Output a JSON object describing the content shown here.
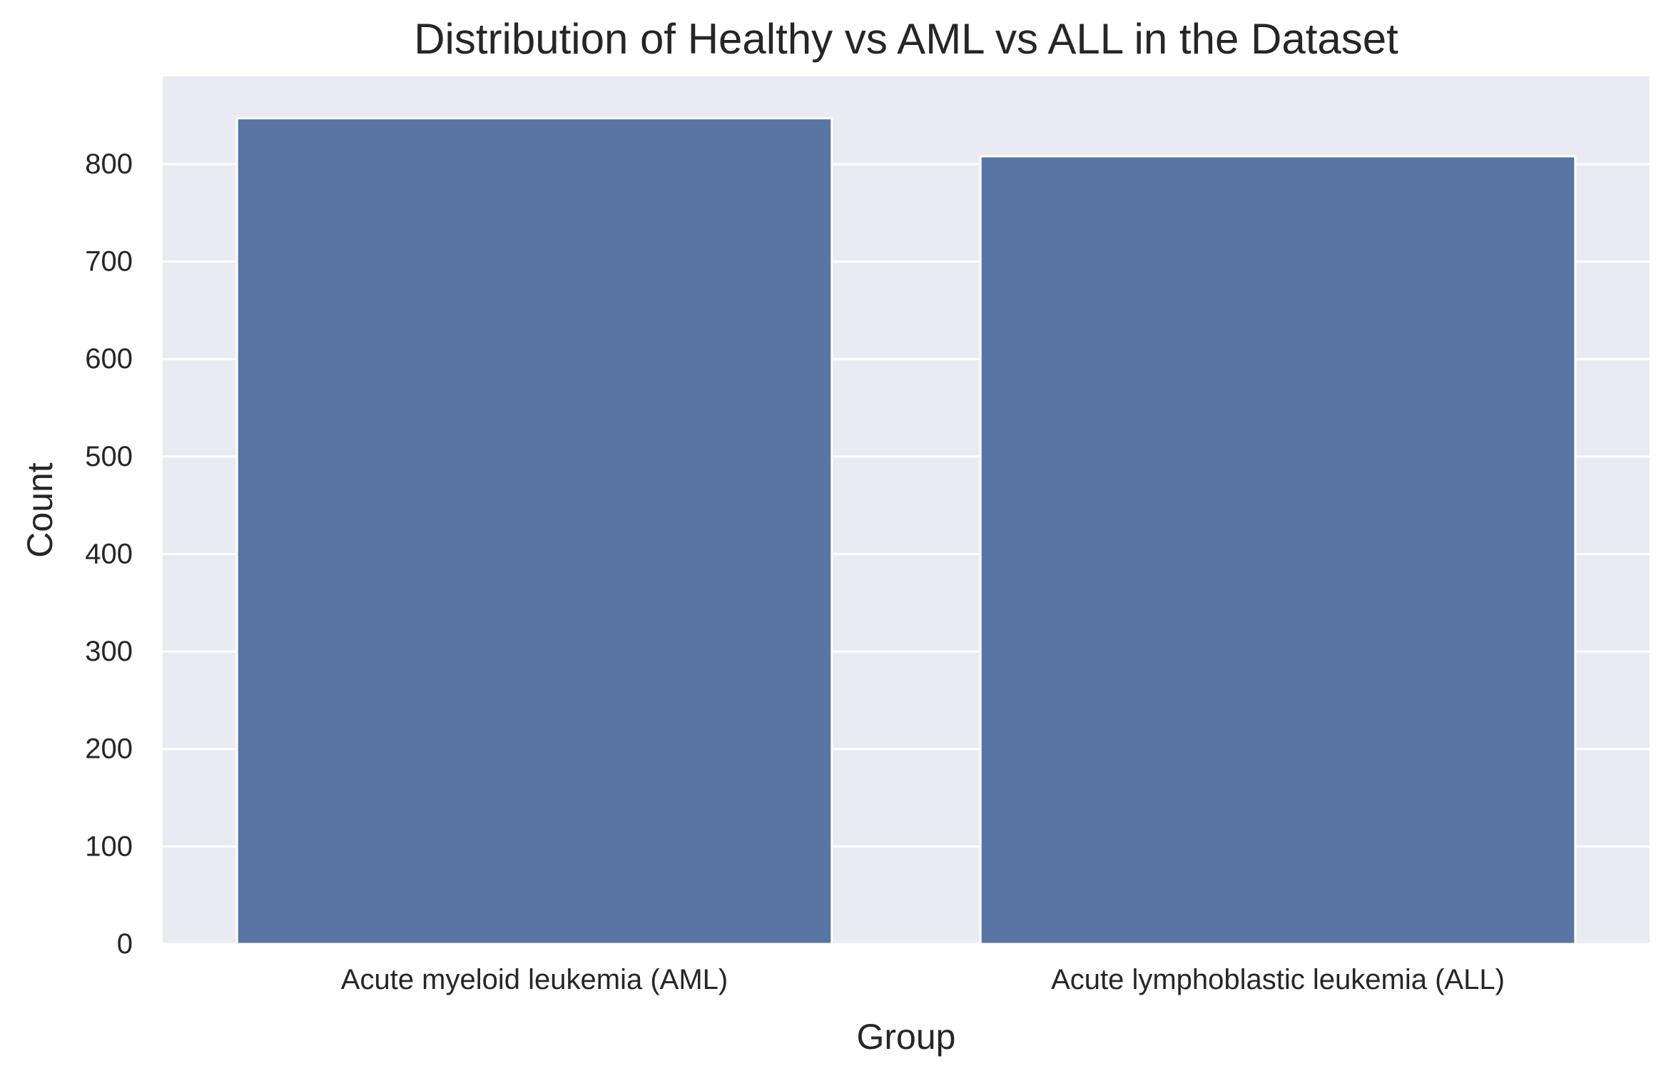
{
  "chart_data": {
    "type": "bar",
    "title": "Distribution of Healthy vs AML vs ALL in the Dataset",
    "xlabel": "Group",
    "ylabel": "Count",
    "categories": [
      "Acute myeloid leukemia (AML)",
      "Acute lymphoblastic leukemia (ALL)"
    ],
    "values": [
      847,
      808
    ],
    "ylim": [
      0,
      890
    ],
    "yticks": [
      0,
      100,
      200,
      300,
      400,
      500,
      600,
      700,
      800
    ],
    "grid": true,
    "legend": "none",
    "colors": {
      "bar": "#5975a4",
      "plot_background": "#eaeaf2",
      "gridline": "#ffffff",
      "text": "#262626"
    }
  }
}
